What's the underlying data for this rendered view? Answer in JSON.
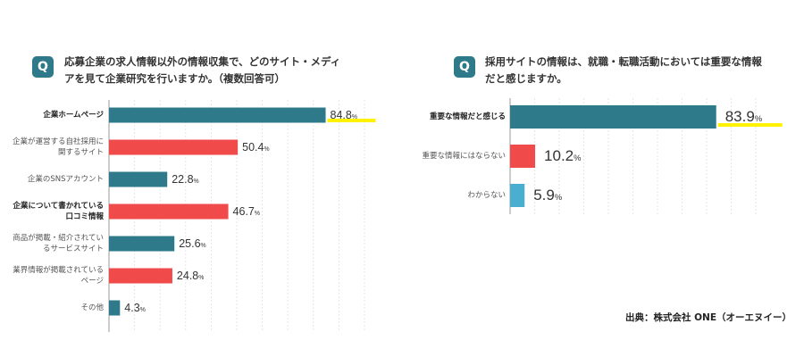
{
  "colors": {
    "teal": "#2e7a8a",
    "red": "#f04a4a",
    "lightblue": "#4aaed0",
    "highlight": "#fff200",
    "badge": "#2e7a8a"
  },
  "q1": {
    "badge": "Q",
    "text": "応募企業の求人情報以外の情報収集で、どのサイト・メディアを見て企業研究を行いますか。（複数回答可）"
  },
  "q2": {
    "badge": "Q",
    "text": "採用サイトの情報は、就職・転職活動においては重要な情報だと感じますか。"
  },
  "source": "出典：株式会社 ONE（オーエヌイー）",
  "chart_data": [
    {
      "type": "bar",
      "orientation": "horizontal",
      "title": "応募企業の求人情報以外の情報収集で、どのサイト・メディアを見て企業研究を行いますか。（複数回答可）",
      "unit": "%",
      "xlim": [
        0,
        100
      ],
      "categories": [
        "企業ホームページ",
        "企業が運営する自社採用に関するサイト",
        "企業のSNSアカウント",
        "企業について書かれている口コミ情報",
        "商品が掲載・紹介されているサービスサイト",
        "業界情報が掲載されているページ",
        "その他"
      ],
      "values": [
        84.8,
        50.4,
        22.8,
        46.7,
        25.6,
        24.8,
        4.3
      ],
      "value_labels": [
        "84.8",
        "50.4",
        "22.8",
        "46.7",
        "25.6",
        "24.8",
        "4.3"
      ],
      "bar_colors": [
        "#2e7a8a",
        "#f04a4a",
        "#2e7a8a",
        "#f04a4a",
        "#2e7a8a",
        "#f04a4a",
        "#2e7a8a"
      ],
      "highlighted": [
        true,
        false,
        false,
        false,
        false,
        false,
        false
      ],
      "bold_labels": [
        true,
        false,
        false,
        true,
        false,
        false,
        false
      ]
    },
    {
      "type": "bar",
      "orientation": "horizontal",
      "title": "採用サイトの情報は、就職・転職活動においては重要な情報だと感じますか。",
      "unit": "%",
      "xlim": [
        0,
        100
      ],
      "categories": [
        "重要な情報だと感じる",
        "重要な情報にはならない",
        "わからない"
      ],
      "values": [
        83.9,
        10.2,
        5.9
      ],
      "value_labels": [
        "83.9",
        "10.2",
        "5.9"
      ],
      "bar_colors": [
        "#2e7a8a",
        "#f04a4a",
        "#4aaed0"
      ],
      "highlighted": [
        true,
        false,
        false
      ],
      "bold_labels": [
        true,
        false,
        false
      ]
    }
  ]
}
